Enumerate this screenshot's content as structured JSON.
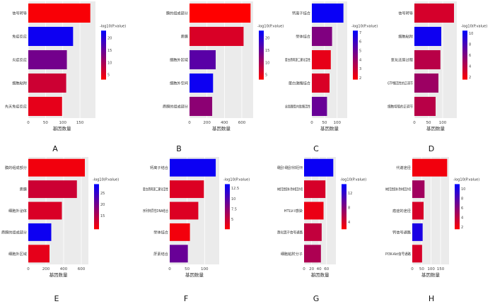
{
  "figure": {
    "panel_letters": [
      "A",
      "B",
      "C",
      "D",
      "E",
      "F",
      "G",
      "H"
    ],
    "xlabel": "基因数量",
    "legend_title": "-log10(P.value)",
    "color_scale": {
      "low": "#ff0000",
      "high": "#0000ff"
    }
  },
  "chart_data": [
    {
      "panel": "A",
      "type": "bar",
      "orientation": "horizontal",
      "categories": [
        "信号转导",
        "免疫反应",
        "炎症反应",
        "细胞粘附",
        "先天免疫反应"
      ],
      "values": [
        180,
        130,
        112,
        110,
        98
      ],
      "color_values": [
        3.5,
        22,
        14,
        7,
        5
      ],
      "xlim": [
        0,
        195
      ],
      "xticks": [
        0,
        50,
        100,
        150
      ],
      "legend": {
        "min": 3,
        "max": 23,
        "ticks": [
          20,
          15,
          10,
          5
        ]
      },
      "xlabel": "基因数量",
      "legend_title": "-log10(P.value)"
    },
    {
      "panel": "B",
      "type": "bar",
      "orientation": "horizontal",
      "categories": [
        "膜的组成部分",
        "质膜",
        "细胞外区域",
        "细胞外空间",
        "质膜的组成部分"
      ],
      "values": [
        700,
        620,
        300,
        270,
        260
      ],
      "color_values": [
        3,
        6,
        16,
        22,
        12
      ],
      "xlim": [
        0,
        730
      ],
      "xticks": [
        0,
        200,
        400,
        600
      ],
      "legend": {
        "min": 3,
        "max": 23,
        "ticks": [
          20,
          15,
          10,
          5
        ]
      },
      "xlabel": "基因数量",
      "legend_title": "-log10(P.value)"
    },
    {
      "panel": "C",
      "type": "bar",
      "orientation": "horizontal",
      "categories": [
        "钙离子结合",
        "受体结合",
        "蛋白质同源二聚化活性",
        "蛋白激酶结合",
        "丝氨酸型内肽酶活性"
      ],
      "values": [
        125,
        80,
        75,
        70,
        60
      ],
      "color_values": [
        7,
        4.5,
        2.3,
        2.6,
        5
      ],
      "xlim": [
        0,
        140
      ],
      "xticks": [
        0,
        50,
        100
      ],
      "legend": {
        "min": 1.8,
        "max": 7.2,
        "ticks": [
          7,
          6,
          5,
          4,
          3,
          2
        ]
      },
      "xlabel": "基因数量",
      "legend_title": "-log10(P.value)"
    },
    {
      "panel": "D",
      "type": "bar",
      "orientation": "horizontal",
      "categories": [
        "信号转导",
        "细胞粘附",
        "氧化还原过程",
        "GTP酶活性的正调节",
        "细胞增殖的正调节"
      ],
      "values": [
        140,
        95,
        92,
        85,
        75
      ],
      "color_values": [
        3,
        10,
        4,
        5,
        4
      ],
      "xlim": [
        0,
        150
      ],
      "xticks": [
        0,
        50,
        100
      ],
      "legend": {
        "min": 1.5,
        "max": 10.5,
        "ticks": [
          10,
          8,
          6,
          4,
          2
        ]
      },
      "xlabel": "基因数量",
      "legend_title": "-log10(P.value)"
    },
    {
      "panel": "E",
      "type": "bar",
      "orientation": "horizontal",
      "categories": [
        "膜的组成部分",
        "质膜",
        "细胞外泌体",
        "质膜的组成部分",
        "细胞外区域"
      ],
      "values": [
        640,
        550,
        380,
        260,
        240
      ],
      "color_values": [
        10,
        13,
        12,
        28,
        11
      ],
      "xlim": [
        0,
        680
      ],
      "xticks": [
        0,
        200,
        400,
        600
      ],
      "legend": {
        "min": 9,
        "max": 29,
        "ticks": [
          25,
          20,
          15
        ]
      },
      "xlabel": "基因数量",
      "legend_title": "-log10(P.value)"
    },
    {
      "panel": "F",
      "type": "bar",
      "orientation": "horizontal",
      "categories": [
        "钙离子结合",
        "蛋白质同源二聚化活性",
        "序列特异性DNA结合",
        "受体结合",
        "肝素结合"
      ],
      "values": [
        132,
        98,
        82,
        58,
        52
      ],
      "color_values": [
        13,
        4,
        4,
        3,
        9
      ],
      "xlim": [
        0,
        142
      ],
      "xticks": [
        0,
        50,
        100
      ],
      "legend": {
        "min": 2.5,
        "max": 13.5,
        "ticks": [
          12.5,
          10.0,
          7.5,
          5.0
        ]
      },
      "xlabel": "基因数量",
      "legend_title": "-log10(P.value)"
    },
    {
      "panel": "G",
      "type": "bar",
      "orientation": "horizontal",
      "categories": [
        "细胞因子-细胞因子受体相互作用",
        "神经活性配体-受体相互作用",
        "HTLV-I感染",
        "趋化因子信号通路",
        "细胞粘附分子"
      ],
      "values": [
        78,
        57,
        52,
        47,
        45
      ],
      "color_values": [
        14,
        4,
        3,
        5,
        6
      ],
      "xlim": [
        0,
        85
      ],
      "xticks": [
        0,
        20,
        40,
        60
      ],
      "legend": {
        "min": 2,
        "max": 14.5,
        "ticks": [
          12,
          8,
          4
        ]
      },
      "xlabel": "基因数量",
      "legend_title": "-log10(P.value)"
    },
    {
      "panel": "H",
      "type": "bar",
      "orientation": "horizontal",
      "categories": [
        "代谢途径",
        "神经活性配体-受体相互作用",
        "癌症的途径",
        "钙信号通路",
        "PI3K-Akt信号通路"
      ],
      "values": [
        185,
        65,
        60,
        55,
        52
      ],
      "color_values": [
        2,
        5,
        3,
        10,
        3
      ],
      "xlim": [
        0,
        195
      ],
      "xticks": [
        0,
        50,
        100,
        150
      ],
      "legend": {
        "min": 1.5,
        "max": 11,
        "ticks": [
          10,
          8,
          6,
          4,
          2
        ]
      },
      "xlabel": "基因数量",
      "legend_title": "-log10(P.value)"
    }
  ]
}
